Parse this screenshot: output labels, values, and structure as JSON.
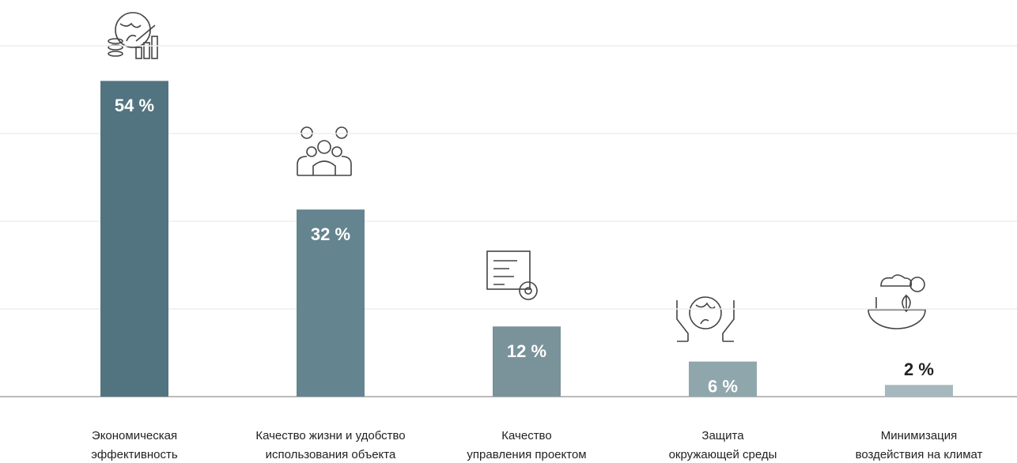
{
  "chart_data": {
    "type": "bar",
    "categories": [
      "Экономическая\nэффективность",
      "Качество жизни и удобство\nиспользования объекта",
      "Качество\nуправления проектом",
      "Защита\nокружающей среды",
      "Минимизация\nвоздействия на климат"
    ],
    "values": [
      54,
      32,
      12,
      6,
      2
    ],
    "value_labels": [
      "54 %",
      "32 %",
      "12 %",
      "6 %",
      "2 %"
    ],
    "colors": [
      "#527480",
      "#64858f",
      "#7a9299",
      "#8fa6ad",
      "#a6b8bd"
    ],
    "ylim": [
      0,
      60
    ],
    "yticks": [
      0,
      15,
      30,
      45,
      60
    ],
    "grid": true
  }
}
